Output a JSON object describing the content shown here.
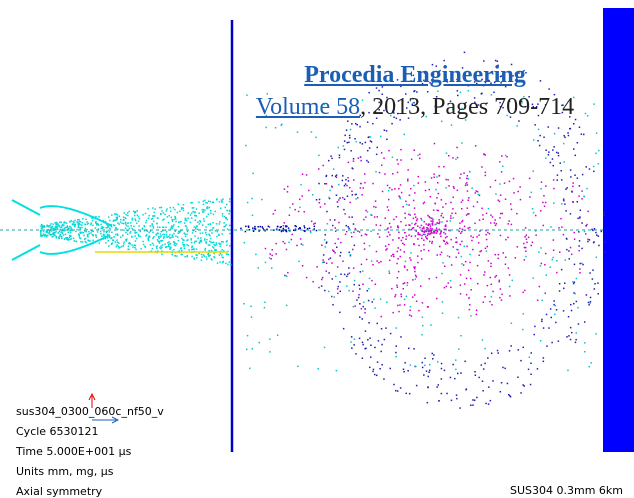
{
  "header": {
    "journal": "Procedia Engineering",
    "volume": "Volume 58",
    "details": ", 2013, Pages 709-714"
  },
  "info": {
    "lines": [
      "sus304_0300_060c_nf50_v",
      "Cycle 6530121",
      "Time 5.000E+001 µs",
      "Units mm, mg, µs",
      "Axial symmetry"
    ],
    "material": "SUS304 0.3mm  6km"
  }
}
